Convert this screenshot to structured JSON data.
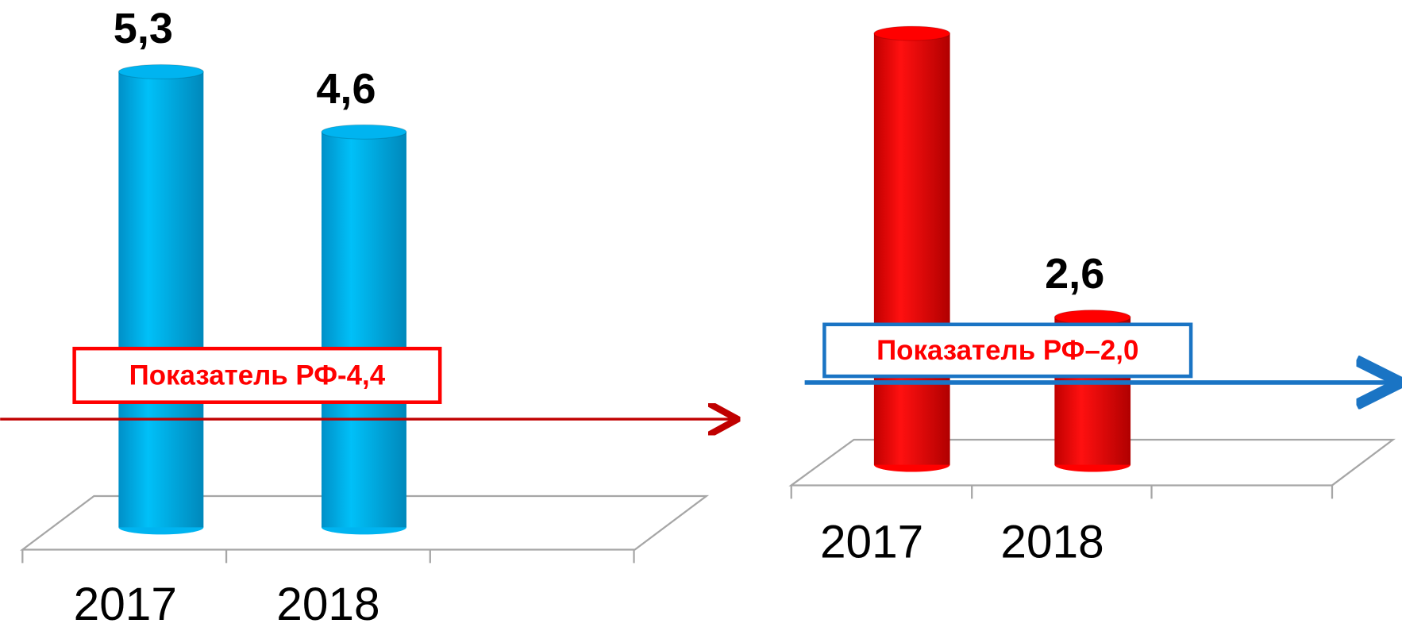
{
  "chart_data": [
    {
      "type": "bar",
      "categories": [
        "2017",
        "2018"
      ],
      "values": [
        5.3,
        4.6
      ],
      "value_labels": [
        "5,3",
        "4,6"
      ],
      "color": "#00b4f0",
      "ylim": [
        0,
        6
      ],
      "annotation": "Показатель РФ-4,4"
    },
    {
      "type": "bar",
      "categories": [
        "2017",
        "2018"
      ],
      "values": [
        7.6,
        2.6
      ],
      "value_labels": [
        null,
        "2,6"
      ],
      "color": "#ff0000",
      "ylim": [
        0,
        8
      ],
      "annotation": "Показатель РФ–2,0"
    }
  ]
}
